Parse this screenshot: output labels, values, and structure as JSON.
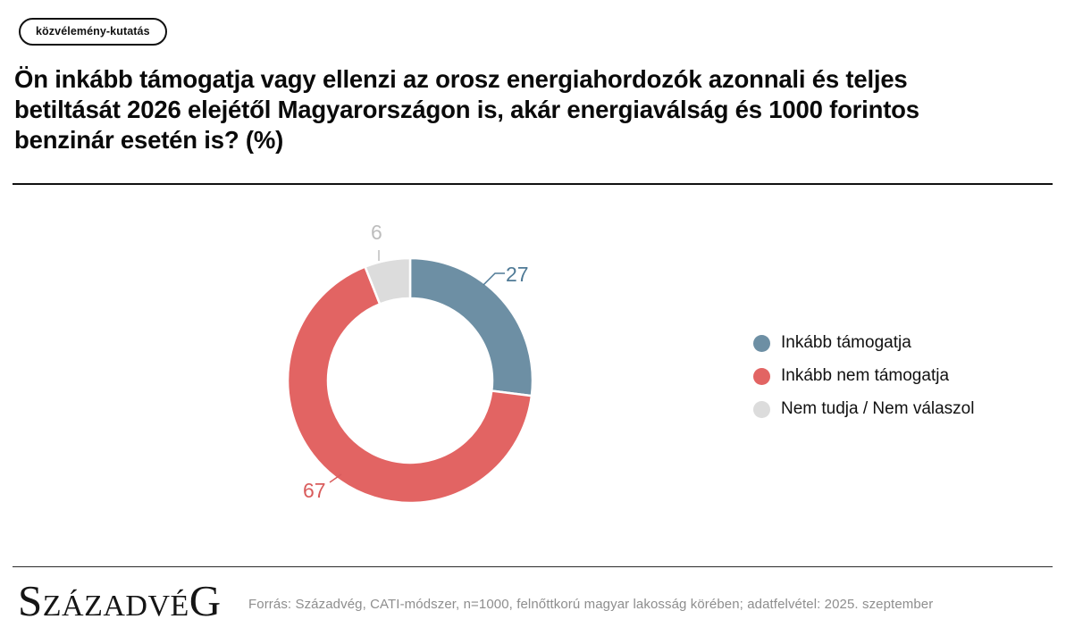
{
  "badge": {
    "label": "közvélemény-kutatás"
  },
  "title": "Ön inkább támogatja vagy ellenzi az orosz energiahordozók azonnali és teljes betiltását 2026 elejétől Magyarországon is, akár energiaválság és 1000 forintos benzinár esetén is? (%)",
  "chart_data": {
    "type": "pie",
    "subtype": "donut",
    "title": "Ön inkább támogatja vagy ellenzi az orosz energiahordozók azonnali és teljes betiltását 2026 elejétől Magyarországon is, akár energiaválság és 1000 forintos benzinár esetén is? (%)",
    "unit": "%",
    "categories": [
      "Inkább támogatja",
      "Inkább nem támogatja",
      "Nem tudja / Nem válaszol"
    ],
    "values": [
      27,
      67,
      6
    ],
    "colors": [
      "#6d8fa4",
      "#e26463",
      "#dcdcdc"
    ],
    "label_colors": [
      "#4f7a96",
      "#d95c5c",
      "#bdbdbd"
    ],
    "start_angle_deg": -90,
    "direction": "clockwise",
    "legend_position": "right",
    "donut_hole_ratio": 0.67,
    "separator_color": "#ffffff"
  },
  "footer": {
    "logo": "SzázadvéG",
    "source": "Forrás: Századvég, CATI-módszer, n=1000, felnőttkorú magyar lakosság körében; adatfelvétel: 2025. szeptember"
  }
}
